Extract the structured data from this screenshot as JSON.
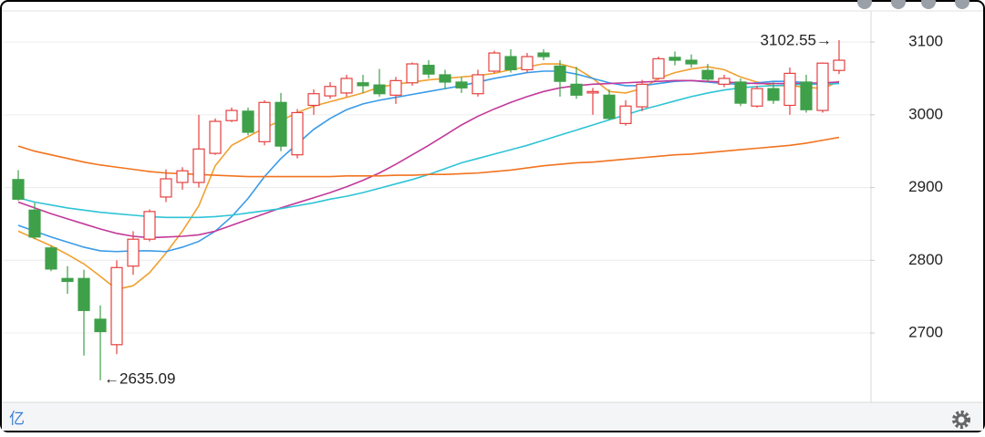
{
  "chart_data": {
    "type": "candlestick",
    "ylim": [
      2606,
      3139
    ],
    "yticks": [
      2700,
      2800,
      2900,
      3000,
      3100
    ],
    "grid": true,
    "up_color": "#e5403f",
    "down_color": "#3fa04a",
    "open": [
      2911,
      2869,
      2817,
      2775,
      2775,
      2719,
      2684,
      2792,
      2829,
      2887,
      2907,
      2907,
      2947,
      2992,
      3005,
      2963,
      3017,
      2945,
      3013,
      3026,
      3030,
      3044,
      3041,
      3027,
      3044,
      3068,
      3055,
      3045,
      3029,
      3060,
      3080,
      3062,
      3085,
      3067,
      3042,
      3030,
      3027,
      2988,
      3011,
      3050,
      3079,
      3075,
      3061,
      3042,
      3045,
      3012,
      3036,
      3013,
      3045,
      3006,
      3061
    ],
    "high": [
      2924,
      2879,
      2820,
      2792,
      2787,
      2738,
      2800,
      2840,
      2870,
      2925,
      2928,
      3000,
      2995,
      3010,
      3010,
      3020,
      3030,
      3008,
      3035,
      3045,
      3055,
      3055,
      3063,
      3052,
      3072,
      3075,
      3062,
      3052,
      3062,
      3088,
      3090,
      3085,
      3090,
      3075,
      3066,
      3037,
      3035,
      3020,
      3048,
      3080,
      3087,
      3083,
      3070,
      3055,
      3050,
      3040,
      3045,
      3065,
      3055,
      3072,
      3102.55
    ],
    "low": [
      2882,
      2829,
      2785,
      2754,
      2669,
      2635.09,
      2671,
      2780,
      2826,
      2880,
      2897,
      2900,
      2945,
      2990,
      2972,
      2958,
      2950,
      2940,
      3000,
      3022,
      3025,
      3030,
      3025,
      3015,
      3040,
      3050,
      3035,
      3030,
      3025,
      3057,
      3058,
      3058,
      3075,
      3025,
      3022,
      3000,
      2993,
      2985,
      3005,
      3048,
      3068,
      3065,
      3045,
      3038,
      3012,
      3010,
      3015,
      3000,
      3003,
      3003,
      3056
    ],
    "close": [
      2884,
      2832,
      2788,
      2771,
      2731,
      2702,
      2790,
      2829,
      2867,
      2912,
      2923,
      2953,
      2991,
      3006,
      2976,
      3017,
      2957,
      3003,
      3029,
      3039,
      3050,
      3040,
      3029,
      3047,
      3070,
      3056,
      3045,
      3037,
      3055,
      3085,
      3062,
      3080,
      3080,
      3046,
      3027,
      3032,
      2995,
      3012,
      3042,
      3077,
      3075,
      3070,
      3049,
      3050,
      3016,
      3036,
      3020,
      3057,
      3007,
      3071,
      3075
    ],
    "lines": [
      {
        "color": "#f0a030",
        "values": [
          2840,
          2830,
          2820,
          2808,
          2795,
          2778,
          2760,
          2765,
          2783,
          2810,
          2840,
          2875,
          2930,
          2958,
          2970,
          2982,
          2992,
          3003,
          3012,
          3018,
          3024,
          3030,
          3038,
          3042,
          3045,
          3048,
          3050,
          3052,
          3054,
          3057,
          3062,
          3066,
          3070,
          3070,
          3064,
          3050,
          3032,
          3030,
          3036,
          3050,
          3058,
          3063,
          3066,
          3062,
          3052,
          3045,
          3040,
          3040,
          3038,
          3036,
          3046
        ]
      },
      {
        "color": "#3a9be8",
        "values": [
          2848,
          2840,
          2832,
          2825,
          2818,
          2813,
          2812,
          2813,
          2813,
          2812,
          2818,
          2826,
          2840,
          2860,
          2885,
          2915,
          2940,
          2960,
          2980,
          2995,
          3007,
          3015,
          3020,
          3024,
          3028,
          3032,
          3036,
          3040,
          3045,
          3050,
          3054,
          3058,
          3060,
          3060,
          3056,
          3050,
          3044,
          3040,
          3040,
          3043,
          3046,
          3047,
          3045,
          3043,
          3042,
          3044,
          3046,
          3046,
          3044,
          3043,
          3044
        ]
      },
      {
        "color": "#c2399a",
        "values": [
          2880,
          2872,
          2864,
          2857,
          2850,
          2843,
          2837,
          2833,
          2831,
          2832,
          2833,
          2835,
          2840,
          2848,
          2856,
          2864,
          2872,
          2879,
          2886,
          2893,
          2901,
          2910,
          2920,
          2932,
          2945,
          2958,
          2972,
          2986,
          2998,
          3008,
          3017,
          3025,
          3032,
          3037,
          3040,
          3042,
          3043,
          3044,
          3045,
          3046,
          3047,
          3047,
          3046,
          3045,
          3044,
          3043,
          3043,
          3043,
          3043,
          3044,
          3045
        ]
      },
      {
        "color": "#2ec4d6",
        "values": [
          2886,
          2880,
          2876,
          2872,
          2869,
          2866,
          2864,
          2862,
          2860,
          2859,
          2859,
          2859,
          2860,
          2862,
          2865,
          2868,
          2871,
          2875,
          2879,
          2884,
          2888,
          2893,
          2899,
          2905,
          2911,
          2918,
          2926,
          2934,
          2940,
          2946,
          2952,
          2958,
          2965,
          2972,
          2979,
          2986,
          2993,
          3000,
          3007,
          3013,
          3019,
          3025,
          3030,
          3034,
          3037,
          3039,
          3040,
          3041,
          3042,
          3042,
          3043
        ]
      },
      {
        "color": "#f2731f",
        "values": [
          2957,
          2950,
          2945,
          2940,
          2935,
          2931,
          2928,
          2925,
          2922,
          2920,
          2919,
          2918,
          2917,
          2916,
          2915,
          2915,
          2915,
          2915,
          2915,
          2915,
          2916,
          2916,
          2916,
          2917,
          2917,
          2918,
          2918,
          2919,
          2920,
          2922,
          2924,
          2927,
          2930,
          2932,
          2934,
          2935,
          2937,
          2939,
          2941,
          2943,
          2945,
          2946,
          2948,
          2950,
          2952,
          2954,
          2956,
          2958,
          2961,
          2965,
          2969
        ]
      }
    ],
    "annotations": [
      "3102.55→",
      "←2635.09"
    ],
    "unit_label": "亿"
  }
}
